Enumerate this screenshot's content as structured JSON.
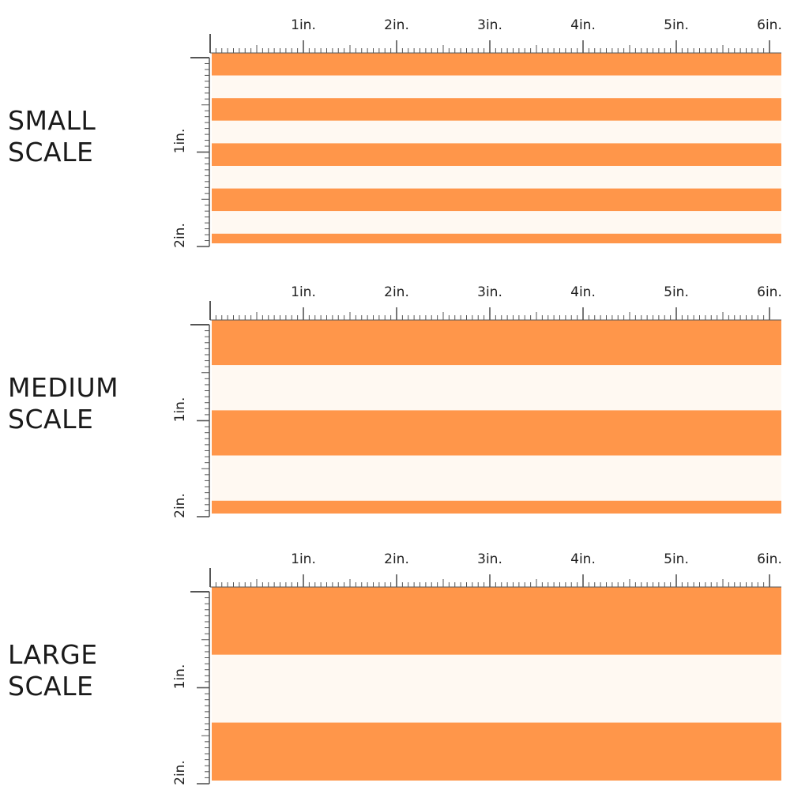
{
  "colors": {
    "stripe_orange": "#FF964A",
    "stripe_cream": "#FFF9F2",
    "ruler": "#555555"
  },
  "panels": [
    {
      "id": "small",
      "label_line1": "SMALL",
      "label_line2": "SCALE",
      "horizontal_ticks": [
        "1in.",
        "2in.",
        "3in.",
        "4in.",
        "5in.",
        "6in."
      ],
      "vertical_ticks": [
        "1in.",
        "2in."
      ],
      "stripe_width_in": 0.25,
      "stripe_count": 9
    },
    {
      "id": "medium",
      "label_line1": "MEDIUM",
      "label_line2": "SCALE",
      "horizontal_ticks": [
        "1in.",
        "2in.",
        "3in.",
        "4in.",
        "5in.",
        "6in."
      ],
      "vertical_ticks": [
        "1in.",
        "2in."
      ],
      "stripe_width_in": 0.5,
      "stripe_count": 4
    },
    {
      "id": "large",
      "label_line1": "LARGE",
      "label_line2": "SCALE",
      "horizontal_ticks": [
        "1in.",
        "2in.",
        "3in.",
        "4in.",
        "5in.",
        "6in."
      ],
      "vertical_ticks": [
        "1in.",
        "2in."
      ],
      "stripe_width_in": 0.75,
      "stripe_count": 3
    }
  ]
}
